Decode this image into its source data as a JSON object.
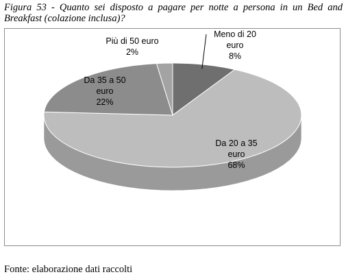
{
  "figure": {
    "caption": "Figura 53 - Quanto sei disposto a pagare per notte a persona in un Bed and Breakfast (colazione inclusa)?",
    "source": "Fonte: elaborazione dati raccolti"
  },
  "chart_data": {
    "type": "pie",
    "style": "3d",
    "categories": [
      "Meno di 20 euro",
      "Da 20 a 35 euro",
      "Da 35 a 50 euro",
      "Più di 50 euro"
    ],
    "values": [
      8,
      68,
      22,
      2
    ],
    "unit": "%",
    "labels": [
      [
        "Meno di 20",
        "euro",
        "8%"
      ],
      [
        "Da 20 a 35",
        "euro",
        "68%"
      ],
      [
        "Da 35 a 50",
        "euro",
        "22%"
      ],
      [
        "Più di 50 euro",
        "2%"
      ]
    ],
    "colors": [
      "#6f6f6f",
      "#bdbdbd",
      "#8c8c8c",
      "#a3a3a3"
    ],
    "side_colors": [
      "#4f4f4f",
      "#9a9a9a",
      "#666666",
      "#7c7c7c"
    ]
  }
}
